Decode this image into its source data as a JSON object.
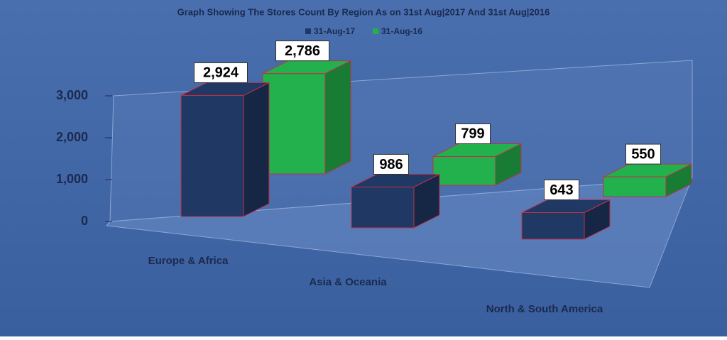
{
  "chart_data": {
    "type": "bar3d",
    "title": "Graph Showing The Stores Count By Region As on 31st Aug|2017 And 31st Aug|2016",
    "categories": [
      "Europe & Africa",
      "Asia & Oceania",
      "North & South America"
    ],
    "series": [
      {
        "name": "31-Aug-17",
        "color": "#1f3864",
        "values": [
          2924,
          986,
          643
        ],
        "value_labels": [
          "2,924",
          "986",
          "643"
        ]
      },
      {
        "name": "31-Aug-16",
        "color": "#22b14c",
        "values": [
          2786,
          799,
          550
        ],
        "value_labels": [
          "2,786",
          "799",
          "550"
        ]
      }
    ],
    "ylim": [
      0,
      3000
    ],
    "yticks": [
      0,
      {
        "value": 1000,
        "label": "1,000"
      },
      {
        "value": 2000,
        "label": "2,000"
      },
      {
        "value": 3000,
        "label": "3,000"
      }
    ]
  }
}
